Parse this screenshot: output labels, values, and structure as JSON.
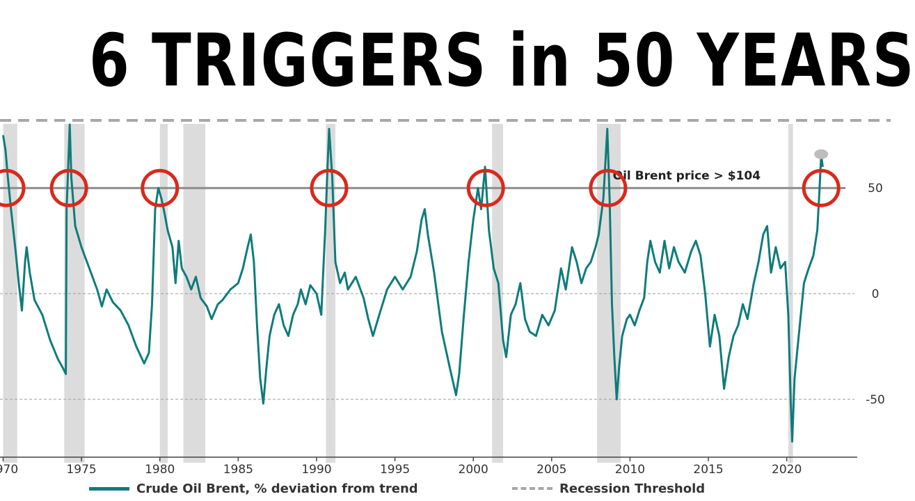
{
  "headline": "6 TRIGGERS in 50 YEARS",
  "colors": {
    "series": "#0f7b7b",
    "threshold": "#a8a8a8",
    "recession_band": "#dcdcdc",
    "circle": "#d9291c",
    "reference_line": "#8c8c8c"
  },
  "chart_data": {
    "type": "line",
    "x_ticks": [
      "1970",
      "1975",
      "1980",
      "1985",
      "1990",
      "1995",
      "2000",
      "2005",
      "2010",
      "2015",
      "2020"
    ],
    "y_ticks": [
      "50",
      "0",
      "-50"
    ],
    "xlim": [
      1969.8,
      2024.5
    ],
    "ylim": [
      -80,
      83
    ],
    "grid": "dashed horizontal at -50 and 0",
    "reference_line": {
      "y": 50,
      "label": "Oil Brent price > $104"
    },
    "recession_threshold_y": 82,
    "recessions": [
      [
        1970.0,
        1970.9
      ],
      [
        1973.9,
        1975.2
      ],
      [
        1980.0,
        1980.5
      ],
      [
        1981.5,
        1982.9
      ],
      [
        1990.6,
        1991.2
      ],
      [
        2001.2,
        2001.9
      ],
      [
        2007.9,
        2009.4
      ],
      [
        2020.1,
        2020.4
      ]
    ],
    "highlighted_peaks": [
      {
        "x": 1970.2,
        "y": 50
      },
      {
        "x": 1974.2,
        "y": 50
      },
      {
        "x": 1980.0,
        "y": 50
      },
      {
        "x": 1990.8,
        "y": 50
      },
      {
        "x": 2000.8,
        "y": 50
      },
      {
        "x": 2008.6,
        "y": 50
      },
      {
        "x": 2022.2,
        "y": 50
      }
    ],
    "latest_point": {
      "x": 2022.2,
      "y": 66
    },
    "series": [
      {
        "name": "Crude Oil Brent, % deviation from trend",
        "points": [
          [
            1970.0,
            75
          ],
          [
            1970.15,
            68
          ],
          [
            1970.3,
            55
          ],
          [
            1970.5,
            40
          ],
          [
            1970.8,
            20
          ],
          [
            1971.0,
            5
          ],
          [
            1971.2,
            -8
          ],
          [
            1971.4,
            15
          ],
          [
            1971.5,
            22
          ],
          [
            1971.7,
            10
          ],
          [
            1972.0,
            -3
          ],
          [
            1972.5,
            -10
          ],
          [
            1973.0,
            -22
          ],
          [
            1973.5,
            -31
          ],
          [
            1973.8,
            -35
          ],
          [
            1974.0,
            -38
          ],
          [
            1974.05,
            40
          ],
          [
            1974.15,
            60
          ],
          [
            1974.25,
            80
          ],
          [
            1974.35,
            55
          ],
          [
            1974.6,
            32
          ],
          [
            1975.0,
            22
          ],
          [
            1975.5,
            12
          ],
          [
            1976.0,
            2
          ],
          [
            1976.3,
            -6
          ],
          [
            1976.6,
            2
          ],
          [
            1977.0,
            -4
          ],
          [
            1977.5,
            -8
          ],
          [
            1978.0,
            -15
          ],
          [
            1978.5,
            -25
          ],
          [
            1979.0,
            -33
          ],
          [
            1979.3,
            -28
          ],
          [
            1979.5,
            -5
          ],
          [
            1979.7,
            40
          ],
          [
            1979.9,
            50
          ],
          [
            1980.1,
            45
          ],
          [
            1980.3,
            38
          ],
          [
            1980.5,
            30
          ],
          [
            1980.8,
            22
          ],
          [
            1981.0,
            5
          ],
          [
            1981.2,
            25
          ],
          [
            1981.4,
            12
          ],
          [
            1981.7,
            8
          ],
          [
            1982.0,
            2
          ],
          [
            1982.3,
            8
          ],
          [
            1982.6,
            -2
          ],
          [
            1983.0,
            -6
          ],
          [
            1983.3,
            -12
          ],
          [
            1983.7,
            -5
          ],
          [
            1984.0,
            -3
          ],
          [
            1984.5,
            2
          ],
          [
            1985.0,
            5
          ],
          [
            1985.3,
            12
          ],
          [
            1985.6,
            22
          ],
          [
            1985.8,
            28
          ],
          [
            1986.0,
            15
          ],
          [
            1986.2,
            -15
          ],
          [
            1986.4,
            -40
          ],
          [
            1986.6,
            -52
          ],
          [
            1986.8,
            -35
          ],
          [
            1987.0,
            -20
          ],
          [
            1987.3,
            -10
          ],
          [
            1987.6,
            -5
          ],
          [
            1987.9,
            -15
          ],
          [
            1988.2,
            -20
          ],
          [
            1988.5,
            -10
          ],
          [
            1988.8,
            -5
          ],
          [
            1989.0,
            2
          ],
          [
            1989.3,
            -5
          ],
          [
            1989.6,
            4
          ],
          [
            1990.0,
            0
          ],
          [
            1990.3,
            -10
          ],
          [
            1990.55,
            30
          ],
          [
            1990.7,
            60
          ],
          [
            1990.8,
            78
          ],
          [
            1991.0,
            55
          ],
          [
            1991.2,
            15
          ],
          [
            1991.5,
            5
          ],
          [
            1991.8,
            10
          ],
          [
            1992.0,
            2
          ],
          [
            1992.5,
            8
          ],
          [
            1993.0,
            -2
          ],
          [
            1993.3,
            -12
          ],
          [
            1993.6,
            -20
          ],
          [
            1994.0,
            -10
          ],
          [
            1994.5,
            2
          ],
          [
            1995.0,
            8
          ],
          [
            1995.5,
            2
          ],
          [
            1996.0,
            8
          ],
          [
            1996.4,
            20
          ],
          [
            1996.7,
            35
          ],
          [
            1996.9,
            40
          ],
          [
            1997.1,
            28
          ],
          [
            1997.5,
            10
          ],
          [
            1998.0,
            -18
          ],
          [
            1998.5,
            -35
          ],
          [
            1998.9,
            -48
          ],
          [
            1999.1,
            -38
          ],
          [
            1999.4,
            -10
          ],
          [
            1999.7,
            15
          ],
          [
            2000.0,
            35
          ],
          [
            2000.3,
            50
          ],
          [
            2000.5,
            40
          ],
          [
            2000.75,
            60
          ],
          [
            2001.0,
            30
          ],
          [
            2001.3,
            12
          ],
          [
            2001.6,
            5
          ],
          [
            2001.9,
            -22
          ],
          [
            2002.1,
            -30
          ],
          [
            2002.4,
            -10
          ],
          [
            2002.7,
            -5
          ],
          [
            2003.0,
            5
          ],
          [
            2003.3,
            -12
          ],
          [
            2003.6,
            -18
          ],
          [
            2004.0,
            -20
          ],
          [
            2004.4,
            -10
          ],
          [
            2004.8,
            -15
          ],
          [
            2005.2,
            -8
          ],
          [
            2005.6,
            12
          ],
          [
            2005.9,
            2
          ],
          [
            2006.3,
            22
          ],
          [
            2006.6,
            15
          ],
          [
            2006.9,
            5
          ],
          [
            2007.2,
            12
          ],
          [
            2007.5,
            15
          ],
          [
            2007.8,
            22
          ],
          [
            2008.0,
            28
          ],
          [
            2008.3,
            45
          ],
          [
            2008.55,
            78
          ],
          [
            2008.7,
            45
          ],
          [
            2008.85,
            -5
          ],
          [
            2009.0,
            -30
          ],
          [
            2009.15,
            -50
          ],
          [
            2009.3,
            -35
          ],
          [
            2009.5,
            -20
          ],
          [
            2009.8,
            -12
          ],
          [
            2010.0,
            -10
          ],
          [
            2010.3,
            -15
          ],
          [
            2010.6,
            -8
          ],
          [
            2010.9,
            -2
          ],
          [
            2011.1,
            15
          ],
          [
            2011.3,
            25
          ],
          [
            2011.6,
            15
          ],
          [
            2011.9,
            10
          ],
          [
            2012.2,
            25
          ],
          [
            2012.5,
            12
          ],
          [
            2012.8,
            22
          ],
          [
            2013.1,
            15
          ],
          [
            2013.5,
            10
          ],
          [
            2013.9,
            20
          ],
          [
            2014.2,
            25
          ],
          [
            2014.5,
            18
          ],
          [
            2014.8,
            0
          ],
          [
            2015.1,
            -25
          ],
          [
            2015.4,
            -10
          ],
          [
            2015.7,
            -20
          ],
          [
            2016.0,
            -45
          ],
          [
            2016.3,
            -30
          ],
          [
            2016.6,
            -20
          ],
          [
            2016.9,
            -15
          ],
          [
            2017.2,
            -5
          ],
          [
            2017.5,
            -12
          ],
          [
            2017.9,
            5
          ],
          [
            2018.2,
            15
          ],
          [
            2018.5,
            28
          ],
          [
            2018.75,
            32
          ],
          [
            2019.0,
            10
          ],
          [
            2019.3,
            22
          ],
          [
            2019.6,
            12
          ],
          [
            2019.9,
            15
          ],
          [
            2020.1,
            -10
          ],
          [
            2020.25,
            -50
          ],
          [
            2020.35,
            -70
          ],
          [
            2020.5,
            -40
          ],
          [
            2020.7,
            -25
          ],
          [
            2020.9,
            -10
          ],
          [
            2021.1,
            5
          ],
          [
            2021.4,
            12
          ],
          [
            2021.7,
            18
          ],
          [
            2021.95,
            30
          ],
          [
            2022.1,
            50
          ],
          [
            2022.2,
            66
          ],
          [
            2022.3,
            60
          ]
        ]
      },
      {
        "name": "Recession Threshold"
      }
    ]
  }
}
